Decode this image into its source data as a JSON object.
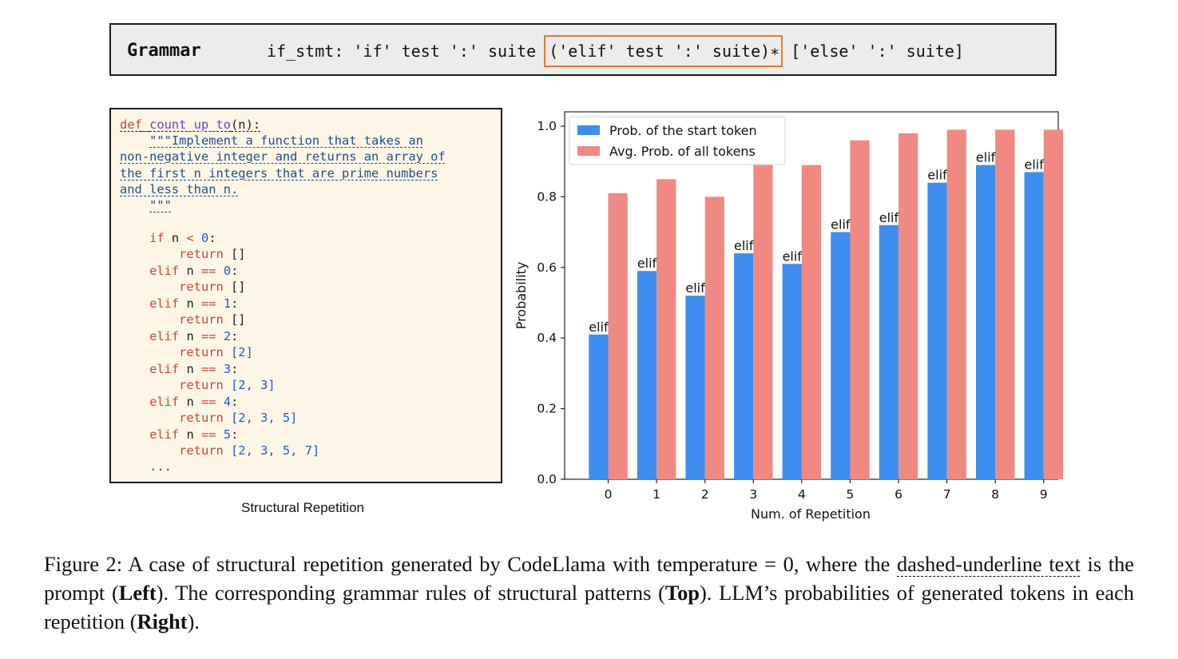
{
  "grammar": {
    "title": "Grammar",
    "rule_prefix": "if_stmt: 'if' test ':' suite ",
    "rule_highlight": "('elif' test ':' suite)∗",
    "rule_suffix": " ['else' ':' suite]",
    "highlight_color": "#e8792f"
  },
  "code": {
    "caption": "Structural Repetition",
    "def_kw": "def",
    "func_name": "count_up_to",
    "params": "(n):",
    "doc1": "\"\"\"Implement a function that takes an",
    "doc2": "non-negative integer and returns an array of",
    "doc3": "the first n integers that are prime numbers",
    "doc4": "and less than n.",
    "doc5": "\"\"\"",
    "if_kw": "if",
    "elif_kw": "elif",
    "return_kw": "return",
    "var": "n",
    "lt": "<",
    "eq": "==",
    "colon": ":",
    "ellipsis": "...",
    "cond_values": [
      "0",
      "0",
      "1",
      "2",
      "3",
      "4",
      "5"
    ],
    "returns": [
      "[]",
      "[]",
      "[]",
      "[2]",
      "[2, 3]",
      "[2, 3, 5]",
      "[2, 3, 5, 7]"
    ]
  },
  "chart_data": {
    "type": "bar",
    "categories": [
      "0",
      "1",
      "2",
      "3",
      "4",
      "5",
      "6",
      "7",
      "8",
      "9"
    ],
    "series": [
      {
        "name": "Prob. of the start token",
        "values": [
          0.41,
          0.59,
          0.52,
          0.64,
          0.61,
          0.7,
          0.72,
          0.84,
          0.89,
          0.87
        ],
        "color": "#3d8ef0"
      },
      {
        "name": "Avg. Prob. of all tokens",
        "values": [
          0.81,
          0.85,
          0.8,
          0.89,
          0.89,
          0.96,
          0.98,
          0.99,
          0.99,
          0.99
        ],
        "color": "#ef8981"
      }
    ],
    "bar_label": "elif",
    "xlabel": "Num. of Repetition",
    "ylabel": "Probability",
    "ylim": [
      0,
      1.0
    ],
    "yticks": [
      "0.0",
      "0.2",
      "0.4",
      "0.6",
      "0.8",
      "1.0"
    ],
    "grid": false,
    "legend": "top-left"
  },
  "caption": {
    "lead": "Figure 2: A case of structural repetition generated by CodeLlama with temperature = 0, where the ",
    "underlined": "dashed-underline text",
    "mid1": " is the prompt (",
    "bold1": "Left",
    "mid2": "). The corresponding grammar rules of structural patterns (",
    "bold2": "Top",
    "mid3": "). LLM’s probabilities of generated tokens in each repetition (",
    "bold3": "Right",
    "tail": ")."
  }
}
